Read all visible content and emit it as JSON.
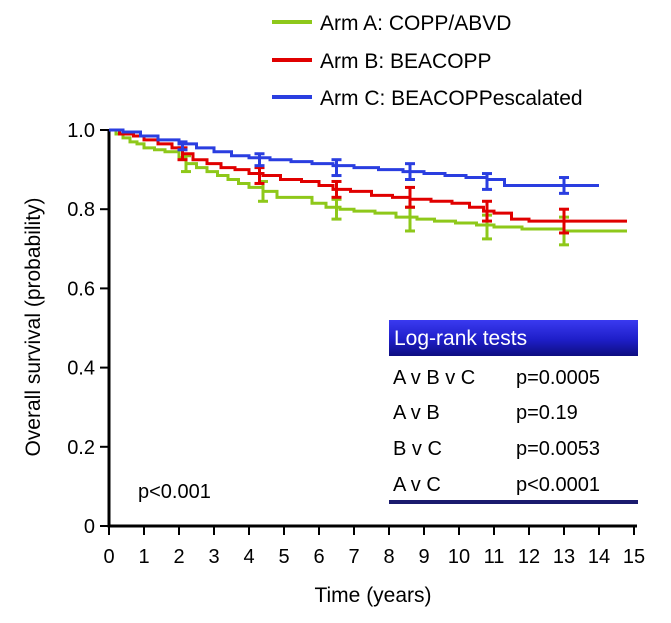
{
  "chart_data": {
    "type": "line",
    "subtype": "kaplan-meier step survival curves with error bars",
    "xlabel": "Time (years)",
    "ylabel": "Overall survival (probability)",
    "xlim": [
      0,
      15
    ],
    "ylim": [
      0,
      1.0
    ],
    "xticks": [
      0,
      1,
      2,
      3,
      4,
      5,
      6,
      7,
      8,
      9,
      10,
      11,
      12,
      13,
      14,
      15
    ],
    "yticks": [
      0,
      0.2,
      0.4,
      0.6,
      0.8,
      1.0
    ],
    "ytick_labels": [
      "0",
      "0.2",
      "0.4",
      "0.6",
      "0.8",
      "1.0"
    ],
    "grid": false,
    "legend_position": "top-right",
    "annotation": "p<0.001",
    "series": [
      {
        "name": "Arm A: COPP/ABVD",
        "color": "#8ec81a",
        "x": [
          0,
          0.2,
          0.4,
          0.6,
          0.8,
          1.0,
          1.3,
          1.6,
          2.0,
          2.2,
          2.5,
          2.8,
          3.1,
          3.4,
          3.7,
          4.0,
          4.4,
          4.8,
          5.3,
          5.8,
          6.2,
          6.6,
          7.0,
          7.6,
          8.2,
          8.8,
          9.3,
          9.9,
          10.5,
          11.0,
          11.8,
          12.5,
          13.0,
          14.0,
          14.8
        ],
        "y": [
          1.0,
          0.99,
          0.98,
          0.97,
          0.965,
          0.955,
          0.95,
          0.945,
          0.93,
          0.915,
          0.905,
          0.895,
          0.885,
          0.875,
          0.865,
          0.855,
          0.845,
          0.83,
          0.83,
          0.815,
          0.805,
          0.8,
          0.795,
          0.79,
          0.78,
          0.775,
          0.77,
          0.765,
          0.76,
          0.755,
          0.75,
          0.75,
          0.745,
          0.745,
          0.745
        ],
        "errorbars": [
          {
            "x": 2.2,
            "y": 0.915,
            "lo": 0.895,
            "hi": 0.935
          },
          {
            "x": 4.4,
            "y": 0.845,
            "lo": 0.82,
            "hi": 0.87
          },
          {
            "x": 6.5,
            "y": 0.8,
            "lo": 0.775,
            "hi": 0.825
          },
          {
            "x": 8.6,
            "y": 0.775,
            "lo": 0.745,
            "hi": 0.805
          },
          {
            "x": 10.8,
            "y": 0.755,
            "lo": 0.725,
            "hi": 0.785
          },
          {
            "x": 13.0,
            "y": 0.745,
            "lo": 0.71,
            "hi": 0.78
          }
        ]
      },
      {
        "name": "Arm B: BEACOPP",
        "color": "#e00000",
        "x": [
          0,
          0.3,
          0.7,
          1.0,
          1.4,
          1.8,
          2.1,
          2.4,
          2.8,
          3.2,
          3.6,
          4.0,
          4.4,
          4.9,
          5.5,
          6.0,
          6.4,
          6.9,
          7.5,
          8.1,
          8.6,
          9.2,
          9.8,
          10.3,
          10.7,
          11.0,
          11.5,
          12.0,
          13.0,
          14.0,
          14.8
        ],
        "y": [
          1.0,
          0.99,
          0.985,
          0.975,
          0.965,
          0.955,
          0.94,
          0.925,
          0.915,
          0.905,
          0.9,
          0.89,
          0.885,
          0.875,
          0.87,
          0.86,
          0.85,
          0.845,
          0.835,
          0.83,
          0.825,
          0.82,
          0.815,
          0.805,
          0.795,
          0.79,
          0.775,
          0.77,
          0.77,
          0.77,
          0.77
        ],
        "errorbars": [
          {
            "x": 2.1,
            "y": 0.94,
            "lo": 0.925,
            "hi": 0.955
          },
          {
            "x": 4.3,
            "y": 0.885,
            "lo": 0.865,
            "hi": 0.905
          },
          {
            "x": 6.5,
            "y": 0.85,
            "lo": 0.83,
            "hi": 0.87
          },
          {
            "x": 8.6,
            "y": 0.83,
            "lo": 0.805,
            "hi": 0.855
          },
          {
            "x": 10.8,
            "y": 0.795,
            "lo": 0.77,
            "hi": 0.82
          },
          {
            "x": 13.0,
            "y": 0.77,
            "lo": 0.74,
            "hi": 0.8
          }
        ]
      },
      {
        "name": "Arm C: BEACOPPescalated",
        "color": "#2a3ee0",
        "x": [
          0,
          0.4,
          0.9,
          1.4,
          2.0,
          2.5,
          3.0,
          3.5,
          4.0,
          4.6,
          5.2,
          5.8,
          6.4,
          7.0,
          7.7,
          8.4,
          9.0,
          9.6,
          10.2,
          10.8,
          11.3,
          12.0,
          13.0,
          14.0
        ],
        "y": [
          1.0,
          0.995,
          0.985,
          0.975,
          0.965,
          0.955,
          0.945,
          0.935,
          0.93,
          0.925,
          0.92,
          0.915,
          0.91,
          0.905,
          0.9,
          0.895,
          0.89,
          0.885,
          0.88,
          0.875,
          0.86,
          0.86,
          0.86,
          0.86
        ],
        "errorbars": [
          {
            "x": 2.1,
            "y": 0.96,
            "lo": 0.95,
            "hi": 0.97
          },
          {
            "x": 4.3,
            "y": 0.925,
            "lo": 0.91,
            "hi": 0.94
          },
          {
            "x": 6.5,
            "y": 0.905,
            "lo": 0.885,
            "hi": 0.925
          },
          {
            "x": 8.6,
            "y": 0.895,
            "lo": 0.875,
            "hi": 0.915
          },
          {
            "x": 10.8,
            "y": 0.87,
            "lo": 0.85,
            "hi": 0.89
          },
          {
            "x": 13.0,
            "y": 0.86,
            "lo": 0.84,
            "hi": 0.88
          }
        ]
      }
    ],
    "table": {
      "title": "Log-rank tests",
      "rows": [
        {
          "comparison": "A v B v C",
          "p": "p=0.0005"
        },
        {
          "comparison": "A v B",
          "p": "p=0.19"
        },
        {
          "comparison": "B v C",
          "p": "p=0.0053"
        },
        {
          "comparison": "A v C",
          "p": "p<0.0001"
        }
      ]
    }
  }
}
